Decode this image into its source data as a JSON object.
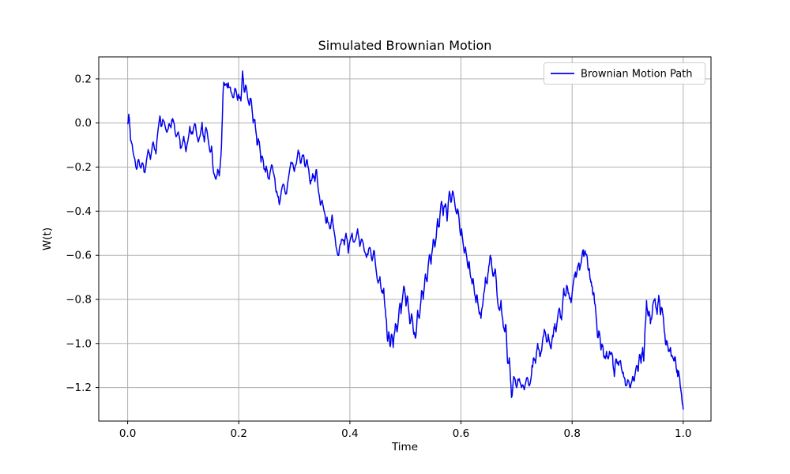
{
  "chart_data": {
    "type": "line",
    "title": "Simulated Brownian Motion",
    "xlabel": "Time",
    "ylabel": "W(t)",
    "legend": [
      "Brownian Motion Path"
    ],
    "legend_position": "upper right",
    "grid": true,
    "xlim": [
      -0.052,
      1.05
    ],
    "ylim": [
      -1.352,
      0.3
    ],
    "x_ticks": {
      "values": [
        0.0,
        0.2,
        0.4,
        0.6,
        0.8,
        1.0
      ],
      "labels": [
        "0.0",
        "0.2",
        "0.4",
        "0.6",
        "0.8",
        "1.0"
      ]
    },
    "y_ticks": {
      "values": [
        0.2,
        0.0,
        -0.2,
        -0.4,
        -0.6,
        -0.8,
        -1.0,
        -1.2
      ],
      "labels": [
        "0.2",
        "0.0",
        "−0.2",
        "−0.4",
        "−0.6",
        "−0.8",
        "−1.0",
        "−1.2"
      ]
    },
    "colors": {
      "line": "#0000ee",
      "grid": "#b0b0b0",
      "spine": "#000000",
      "legend_border": "#cccccc",
      "legend_bg": "#ffffff"
    },
    "render_hints": {
      "jitter": {
        "seed": 9,
        "amplitude": 0.02
      }
    },
    "series": [
      {
        "name": "Brownian Motion Path",
        "points": [
          [
            0.0,
            0.0
          ],
          [
            0.002,
            0.04
          ],
          [
            0.004,
            -0.02
          ],
          [
            0.006,
            -0.08
          ],
          [
            0.01,
            -0.135
          ],
          [
            0.016,
            -0.21
          ],
          [
            0.02,
            -0.165
          ],
          [
            0.024,
            -0.205
          ],
          [
            0.028,
            -0.19
          ],
          [
            0.031,
            -0.225
          ],
          [
            0.037,
            -0.12
          ],
          [
            0.041,
            -0.165
          ],
          [
            0.046,
            -0.086
          ],
          [
            0.051,
            -0.14
          ],
          [
            0.058,
            0.032
          ],
          [
            0.061,
            -0.015
          ],
          [
            0.064,
            0.01
          ],
          [
            0.07,
            -0.04
          ],
          [
            0.074,
            -0.008
          ],
          [
            0.078,
            -0.022
          ],
          [
            0.081,
            0.02
          ],
          [
            0.087,
            -0.062
          ],
          [
            0.091,
            -0.04
          ],
          [
            0.095,
            -0.115
          ],
          [
            0.101,
            -0.06
          ],
          [
            0.105,
            -0.13
          ],
          [
            0.112,
            -0.015
          ],
          [
            0.117,
            -0.05
          ],
          [
            0.122,
            -0.008
          ],
          [
            0.127,
            -0.086
          ],
          [
            0.131,
            -0.05
          ],
          [
            0.134,
            0.003
          ],
          [
            0.138,
            -0.086
          ],
          [
            0.141,
            -0.02
          ],
          [
            0.148,
            -0.13
          ],
          [
            0.151,
            -0.105
          ],
          [
            0.155,
            -0.23
          ],
          [
            0.159,
            -0.255
          ],
          [
            0.162,
            -0.21
          ],
          [
            0.165,
            -0.24
          ],
          [
            0.169,
            -0.1
          ],
          [
            0.172,
            0.15
          ],
          [
            0.174,
            0.182
          ],
          [
            0.179,
            0.164
          ],
          [
            0.181,
            0.182
          ],
          [
            0.186,
            0.14
          ],
          [
            0.191,
            0.117
          ],
          [
            0.193,
            0.157
          ],
          [
            0.198,
            0.103
          ],
          [
            0.2,
            0.128
          ],
          [
            0.204,
            0.1
          ],
          [
            0.207,
            0.236
          ],
          [
            0.21,
            0.14
          ],
          [
            0.213,
            0.17
          ],
          [
            0.219,
            0.08
          ],
          [
            0.222,
            0.11
          ],
          [
            0.226,
            0.0
          ],
          [
            0.229,
            0.015
          ],
          [
            0.233,
            -0.1
          ],
          [
            0.236,
            -0.08
          ],
          [
            0.24,
            -0.177
          ],
          [
            0.243,
            -0.158
          ],
          [
            0.248,
            -0.223
          ],
          [
            0.25,
            -0.205
          ],
          [
            0.255,
            -0.255
          ],
          [
            0.259,
            -0.19
          ],
          [
            0.263,
            -0.23
          ],
          [
            0.267,
            -0.31
          ],
          [
            0.27,
            -0.33
          ],
          [
            0.273,
            -0.37
          ],
          [
            0.28,
            -0.277
          ],
          [
            0.286,
            -0.32
          ],
          [
            0.294,
            -0.177
          ],
          [
            0.3,
            -0.22
          ],
          [
            0.307,
            -0.123
          ],
          [
            0.311,
            -0.183
          ],
          [
            0.316,
            -0.15
          ],
          [
            0.319,
            -0.194
          ],
          [
            0.323,
            -0.166
          ],
          [
            0.329,
            -0.277
          ],
          [
            0.333,
            -0.23
          ],
          [
            0.337,
            -0.266
          ],
          [
            0.34,
            -0.212
          ],
          [
            0.347,
            -0.373
          ],
          [
            0.35,
            -0.35
          ],
          [
            0.357,
            -0.452
          ],
          [
            0.359,
            -0.427
          ],
          [
            0.364,
            -0.48
          ],
          [
            0.368,
            -0.417
          ],
          [
            0.375,
            -0.56
          ],
          [
            0.38,
            -0.6
          ],
          [
            0.385,
            -0.528
          ],
          [
            0.39,
            -0.553
          ],
          [
            0.393,
            -0.5
          ],
          [
            0.397,
            -0.59
          ],
          [
            0.404,
            -0.5
          ],
          [
            0.408,
            -0.54
          ],
          [
            0.414,
            -0.48
          ],
          [
            0.418,
            -0.56
          ],
          [
            0.422,
            -0.528
          ],
          [
            0.43,
            -0.61
          ],
          [
            0.435,
            -0.565
          ],
          [
            0.44,
            -0.625
          ],
          [
            0.444,
            -0.58
          ],
          [
            0.451,
            -0.726
          ],
          [
            0.454,
            -0.697
          ],
          [
            0.458,
            -0.77
          ],
          [
            0.461,
            -0.75
          ],
          [
            0.464,
            -0.847
          ],
          [
            0.466,
            -0.9
          ],
          [
            0.468,
            -0.99
          ],
          [
            0.47,
            -0.947
          ],
          [
            0.472,
            -1.008
          ],
          [
            0.475,
            -0.958
          ],
          [
            0.478,
            -1.018
          ],
          [
            0.482,
            -0.91
          ],
          [
            0.485,
            -0.947
          ],
          [
            0.49,
            -0.82
          ],
          [
            0.492,
            -0.865
          ],
          [
            0.497,
            -0.74
          ],
          [
            0.501,
            -0.83
          ],
          [
            0.504,
            -0.79
          ],
          [
            0.508,
            -0.91
          ],
          [
            0.511,
            -0.865
          ],
          [
            0.515,
            -0.958
          ],
          [
            0.518,
            -0.976
          ],
          [
            0.522,
            -0.85
          ],
          [
            0.525,
            -0.886
          ],
          [
            0.529,
            -0.76
          ],
          [
            0.532,
            -0.8
          ],
          [
            0.536,
            -0.685
          ],
          [
            0.539,
            -0.72
          ],
          [
            0.543,
            -0.6
          ],
          [
            0.546,
            -0.64
          ],
          [
            0.55,
            -0.528
          ],
          [
            0.553,
            -0.563
          ],
          [
            0.558,
            -0.434
          ],
          [
            0.561,
            -0.47
          ],
          [
            0.565,
            -0.355
          ],
          [
            0.568,
            -0.42
          ],
          [
            0.572,
            -0.366
          ],
          [
            0.575,
            -0.445
          ],
          [
            0.579,
            -0.31
          ],
          [
            0.582,
            -0.36
          ],
          [
            0.586,
            -0.316
          ],
          [
            0.592,
            -0.41
          ],
          [
            0.594,
            -0.39
          ],
          [
            0.599,
            -0.505
          ],
          [
            0.601,
            -0.48
          ],
          [
            0.606,
            -0.59
          ],
          [
            0.608,
            -0.563
          ],
          [
            0.613,
            -0.66
          ],
          [
            0.615,
            -0.635
          ],
          [
            0.62,
            -0.73
          ],
          [
            0.622,
            -0.71
          ],
          [
            0.627,
            -0.815
          ],
          [
            0.629,
            -0.78
          ],
          [
            0.633,
            -0.865
          ],
          [
            0.636,
            -0.886
          ],
          [
            0.64,
            -0.8
          ],
          [
            0.644,
            -0.7
          ],
          [
            0.647,
            -0.73
          ],
          [
            0.65,
            -0.65
          ],
          [
            0.653,
            -0.6
          ],
          [
            0.656,
            -0.66
          ],
          [
            0.659,
            -0.696
          ],
          [
            0.662,
            -0.667
          ],
          [
            0.665,
            -0.78
          ],
          [
            0.669,
            -0.84
          ],
          [
            0.672,
            -0.805
          ],
          [
            0.676,
            -0.92
          ],
          [
            0.679,
            -0.947
          ],
          [
            0.681,
            -0.92
          ],
          [
            0.684,
            -1.09
          ],
          [
            0.687,
            -1.065
          ],
          [
            0.691,
            -1.245
          ],
          [
            0.695,
            -1.15
          ],
          [
            0.7,
            -1.2
          ],
          [
            0.705,
            -1.16
          ],
          [
            0.709,
            -1.2
          ],
          [
            0.714,
            -1.21
          ],
          [
            0.719,
            -1.154
          ],
          [
            0.724,
            -1.186
          ],
          [
            0.728,
            -1.1
          ],
          [
            0.731,
            -1.065
          ],
          [
            0.734,
            -1.09
          ],
          [
            0.738,
            -1.0
          ],
          [
            0.742,
            -1.06
          ],
          [
            0.746,
            -1.01
          ],
          [
            0.75,
            -0.936
          ],
          [
            0.754,
            -0.993
          ],
          [
            0.757,
            -0.958
          ],
          [
            0.762,
            -1.025
          ],
          [
            0.766,
            -0.97
          ],
          [
            0.769,
            -0.91
          ],
          [
            0.771,
            -0.947
          ],
          [
            0.777,
            -0.84
          ],
          [
            0.781,
            -0.893
          ],
          [
            0.785,
            -0.75
          ],
          [
            0.788,
            -0.785
          ],
          [
            0.791,
            -0.74
          ],
          [
            0.795,
            -0.79
          ],
          [
            0.798,
            -0.815
          ],
          [
            0.802,
            -0.73
          ],
          [
            0.805,
            -0.685
          ],
          [
            0.807,
            -0.7
          ],
          [
            0.812,
            -0.635
          ],
          [
            0.814,
            -0.66
          ],
          [
            0.819,
            -0.58
          ],
          [
            0.821,
            -0.605
          ],
          [
            0.824,
            -0.59
          ],
          [
            0.828,
            -0.64
          ],
          [
            0.831,
            -0.66
          ],
          [
            0.833,
            -0.71
          ],
          [
            0.836,
            -0.74
          ],
          [
            0.838,
            -0.77
          ],
          [
            0.84,
            -0.8
          ],
          [
            0.843,
            -0.865
          ],
          [
            0.845,
            -0.94
          ],
          [
            0.847,
            -0.97
          ],
          [
            0.849,
            -0.947
          ],
          [
            0.852,
            -1.03
          ],
          [
            0.855,
            -1.008
          ],
          [
            0.858,
            -1.065
          ],
          [
            0.862,
            -1.036
          ],
          [
            0.865,
            -1.07
          ],
          [
            0.868,
            -1.043
          ],
          [
            0.873,
            -1.06
          ],
          [
            0.876,
            -1.15
          ],
          [
            0.879,
            -1.07
          ],
          [
            0.883,
            -1.097
          ],
          [
            0.886,
            -1.08
          ],
          [
            0.89,
            -1.126
          ],
          [
            0.894,
            -1.155
          ],
          [
            0.898,
            -1.19
          ],
          [
            0.901,
            -1.17
          ],
          [
            0.905,
            -1.2
          ],
          [
            0.909,
            -1.15
          ],
          [
            0.912,
            -1.17
          ],
          [
            0.916,
            -1.1
          ],
          [
            0.919,
            -1.126
          ],
          [
            0.921,
            -1.054
          ],
          [
            0.924,
            -1.09
          ],
          [
            0.927,
            -1.018
          ],
          [
            0.929,
            -1.08
          ],
          [
            0.931,
            -0.95
          ],
          [
            0.934,
            -0.805
          ],
          [
            0.937,
            -0.875
          ],
          [
            0.939,
            -0.857
          ],
          [
            0.941,
            -0.91
          ],
          [
            0.945,
            -0.83
          ],
          [
            0.949,
            -0.797
          ],
          [
            0.953,
            -0.868
          ],
          [
            0.956,
            -0.782
          ],
          [
            0.959,
            -0.87
          ],
          [
            0.962,
            -0.84
          ],
          [
            0.966,
            -0.947
          ],
          [
            0.969,
            -1.007
          ],
          [
            0.971,
            -0.99
          ],
          [
            0.974,
            -1.036
          ],
          [
            0.977,
            -1.018
          ],
          [
            0.98,
            -1.06
          ],
          [
            0.983,
            -1.079
          ],
          [
            0.985,
            -1.06
          ],
          [
            0.988,
            -1.12
          ],
          [
            0.99,
            -1.15
          ],
          [
            0.992,
            -1.13
          ],
          [
            0.995,
            -1.2
          ],
          [
            0.997,
            -1.233
          ],
          [
            1.0,
            -1.3
          ]
        ]
      }
    ]
  }
}
